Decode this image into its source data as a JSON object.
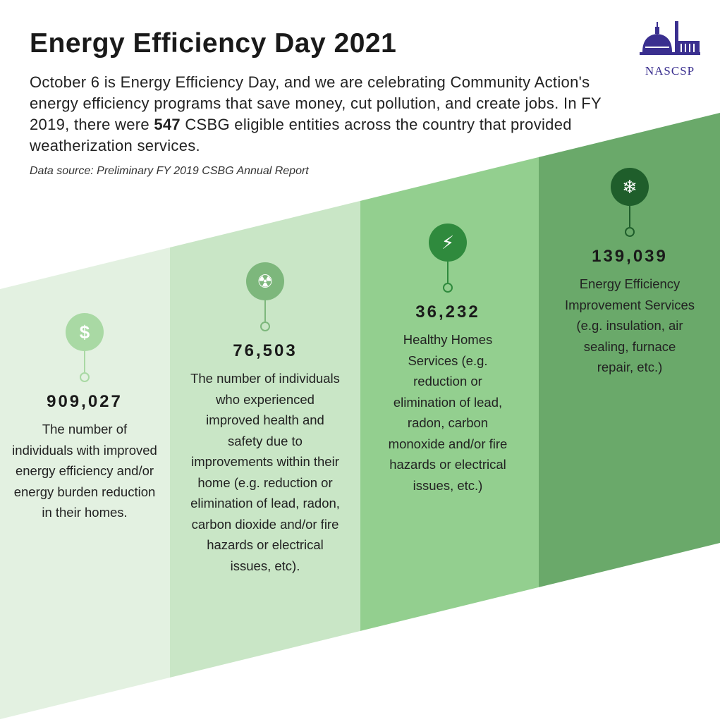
{
  "header": {
    "title": "Energy Efficiency Day 2021",
    "intro_before": "October 6 is Energy Efficiency Day, and we are celebrating Community Action's energy efficiency programs that save money, cut pollution, and create jobs. In FY 2019, there were ",
    "intro_bold": "547",
    "intro_after": " CSBG eligible entities across the country that provided weatherization services.",
    "source": "Data source: Preliminary FY 2019 CSBG Annual Report"
  },
  "logo": {
    "text": "NASCSP",
    "color": "#3a2f8f"
  },
  "stats": [
    {
      "icon": "dollar-icon",
      "glyph": "$",
      "number": "909,027",
      "description": "The number of individuals with improved energy efficiency and/or energy burden reduction in their homes.",
      "column_color": "#e3f1e1",
      "icon_color": "#a9d9a4"
    },
    {
      "icon": "radiation-fan-icon",
      "glyph": "☢",
      "number": "76,503",
      "description": "The number of individuals who experienced improved health and safety due to improvements within their home (e.g. reduction or elimination of lead, radon, carbon dioxide and/or fire hazards or electrical issues, etc).",
      "column_color": "#c9e6c6",
      "icon_color": "#7db77c"
    },
    {
      "icon": "lightning-icon",
      "glyph": "⚡",
      "number": "36,232",
      "description": "Healthy Homes Services (e.g. reduction or elimination of lead, radon, carbon monoxide and/or fire hazards or electrical issues, etc.)",
      "column_color": "#93cf8f",
      "icon_color": "#2f8a3d"
    },
    {
      "icon": "snowflake-icon",
      "glyph": "❄",
      "number": "139,039",
      "description": "Energy Efficiency Improvement Services (e.g. insulation, air sealing, furnace repair, etc.)",
      "column_color": "#6aa96a",
      "icon_color": "#1f5e2b"
    }
  ]
}
